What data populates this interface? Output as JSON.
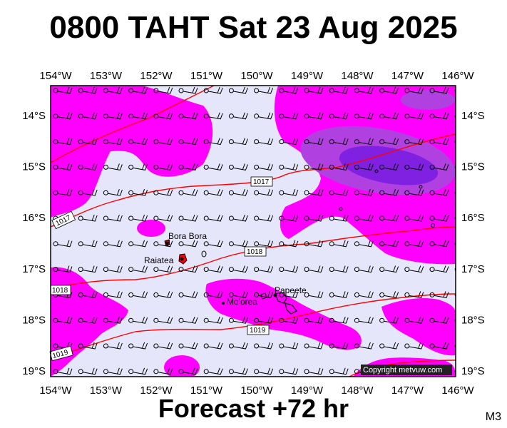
{
  "title": "0800 TAHT Sat 23 Aug 2025",
  "footer": "Forecast +72 hr",
  "model_code": "M3",
  "copyright": "Copyright metvuw.com",
  "colors": {
    "background_low": "#e6e6fa",
    "wind_high": "#ff00ff",
    "wind_higher": "#b040e0",
    "wind_highest": "#8020e0",
    "isobar": "#ff0000",
    "barb": "#000000"
  },
  "longitude_labels": [
    "154°W",
    "153°W",
    "152°W",
    "151°W",
    "150°W",
    "149°W",
    "148°W",
    "147°W",
    "146°W"
  ],
  "latitude_labels": [
    "14°S",
    "15°S",
    "16°S",
    "17°S",
    "18°S",
    "19°S"
  ],
  "isobar_labels": [
    "1017",
    "1018",
    "1019",
    "1017",
    "1018",
    "1019"
  ],
  "places": [
    {
      "name": "Bora Bora"
    },
    {
      "name": "Raiatea"
    },
    {
      "name": "Papeete"
    },
    {
      "name": "Mo'orea"
    }
  ]
}
